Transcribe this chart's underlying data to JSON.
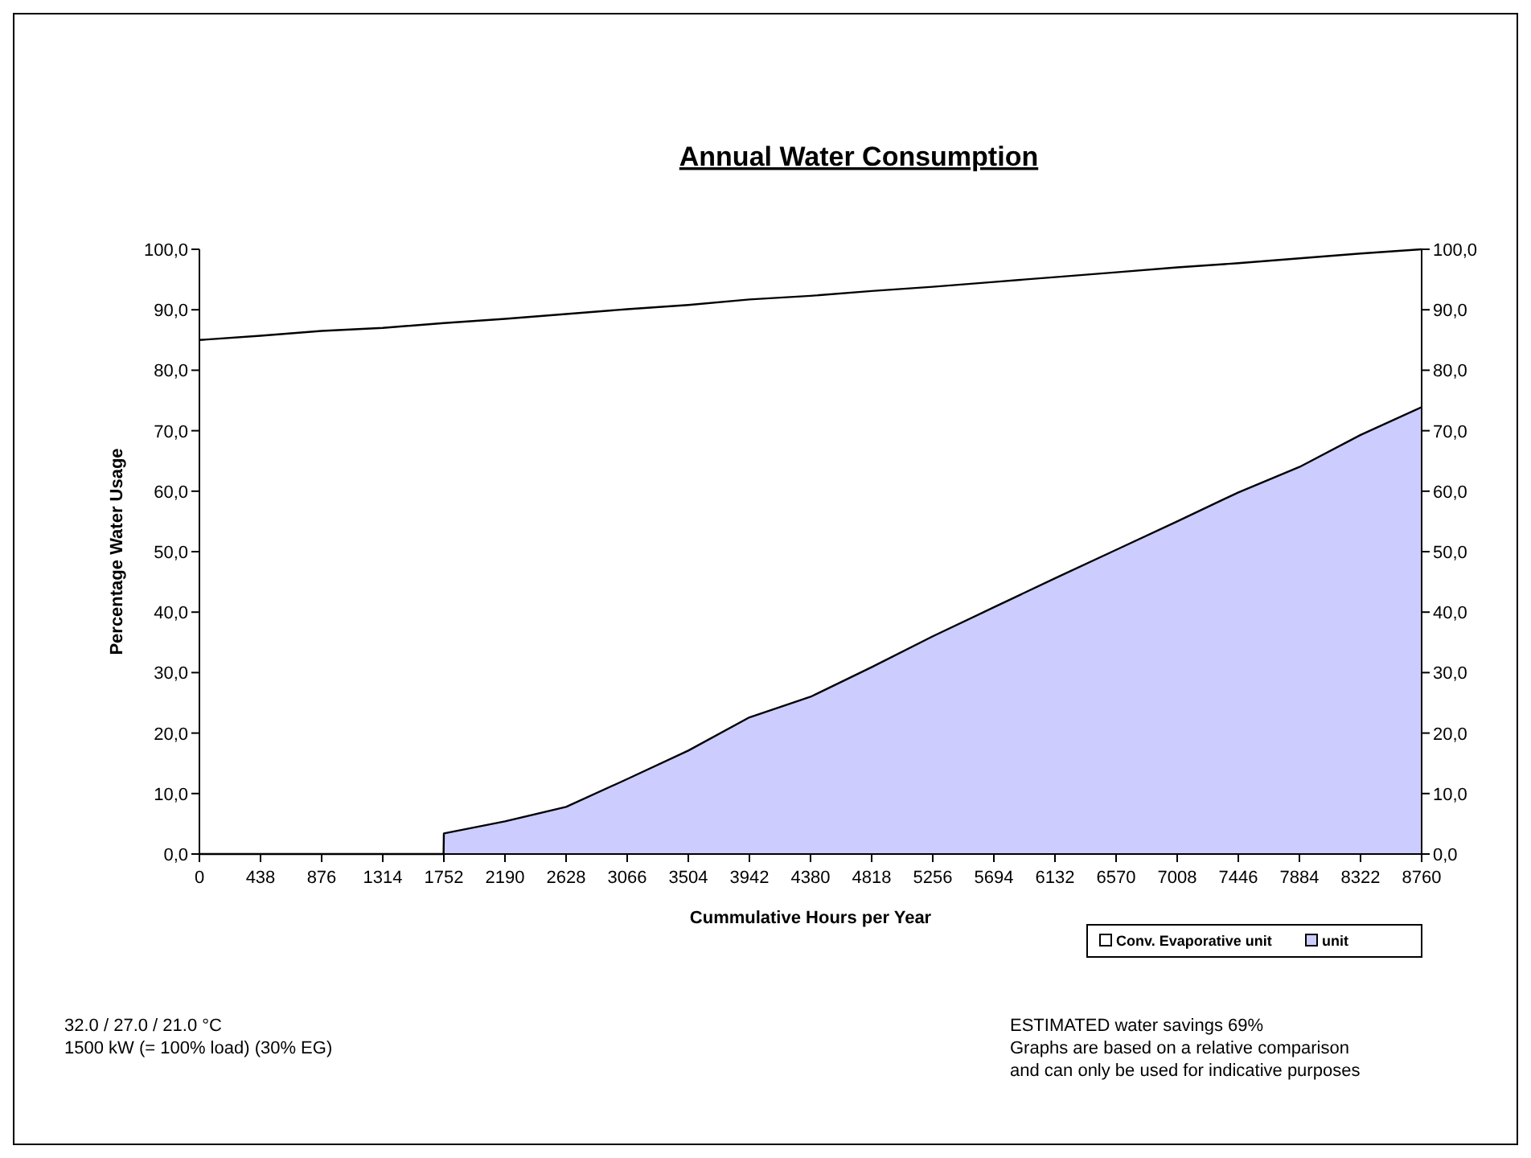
{
  "chart_data": {
    "type": "area",
    "title": "Annual Water Consumption",
    "xlabel": "Cummulative Hours per Year",
    "ylabel": "Percentage Water Usage",
    "xlim": [
      0,
      8760
    ],
    "xticks": [
      0,
      438,
      876,
      1314,
      1752,
      2190,
      2628,
      3066,
      3504,
      3942,
      4380,
      4818,
      5256,
      5694,
      6132,
      6570,
      7008,
      7446,
      7884,
      8322,
      8760
    ],
    "ylim": [
      0,
      100
    ],
    "yticks": [
      {
        "value": 0,
        "label": "0,0"
      },
      {
        "value": 10,
        "label": "10,0"
      },
      {
        "value": 20,
        "label": "20,0"
      },
      {
        "value": 30,
        "label": "30,0"
      },
      {
        "value": 40,
        "label": "40,0"
      },
      {
        "value": 50,
        "label": "50,0"
      },
      {
        "value": 60,
        "label": "60,0"
      },
      {
        "value": 70,
        "label": "70,0"
      },
      {
        "value": 80,
        "label": "80,0"
      },
      {
        "value": 90,
        "label": "90,0"
      },
      {
        "value": 100,
        "label": "100,0"
      }
    ],
    "y2lim": [
      0,
      100
    ],
    "y2ticks": [
      {
        "value": 0,
        "label": "0,0"
      },
      {
        "value": 10,
        "label": "10,0"
      },
      {
        "value": 20,
        "label": "20,0"
      },
      {
        "value": 30,
        "label": "30,0"
      },
      {
        "value": 40,
        "label": "40,0"
      },
      {
        "value": 50,
        "label": "50,0"
      },
      {
        "value": 60,
        "label": "60,0"
      },
      {
        "value": 70,
        "label": "70,0"
      },
      {
        "value": 80,
        "label": "80,0"
      },
      {
        "value": 90,
        "label": "90,0"
      },
      {
        "value": 100,
        "label": "100,0"
      }
    ],
    "grid": false,
    "legend": "bottom right",
    "series": [
      {
        "name": "Conv. Evaporative unit",
        "type": "line",
        "color": "#000000",
        "x": [
          0,
          438,
          876,
          1314,
          1752,
          2190,
          2628,
          3066,
          3504,
          3942,
          4380,
          4818,
          5256,
          5694,
          6132,
          6570,
          7008,
          7446,
          7884,
          8322,
          8760
        ],
        "values": [
          85,
          85.7,
          86.5,
          87,
          87.8,
          88.5,
          89.3,
          90.1,
          90.8,
          91.7,
          92.3,
          93.1,
          93.8,
          94.6,
          95.4,
          96.2,
          97,
          97.7,
          98.5,
          99.3,
          100
        ]
      },
      {
        "name": "unit",
        "color": "#ccccff",
        "x": [
          0,
          1750,
          1752,
          2190,
          2628,
          3066,
          3504,
          3942,
          4380,
          4818,
          5256,
          5694,
          6132,
          6570,
          7008,
          7446,
          7884,
          8322,
          8760
        ],
        "values": [
          0,
          0,
          3.4,
          5.4,
          7.8,
          12.4,
          17.1,
          22.6,
          26,
          30.9,
          36,
          40.8,
          45.6,
          50.3,
          55,
          59.8,
          64,
          69.3,
          73.9
        ]
      }
    ],
    "annotations": [
      "32.0 / 27.0 / 21.0 °C",
      "1500 kW (= 100% load) (30% EG)",
      "ESTIMATED water savings 69%",
      "Graphs are based on a relative comparison",
      "and can only be used for indicative purposes"
    ]
  }
}
